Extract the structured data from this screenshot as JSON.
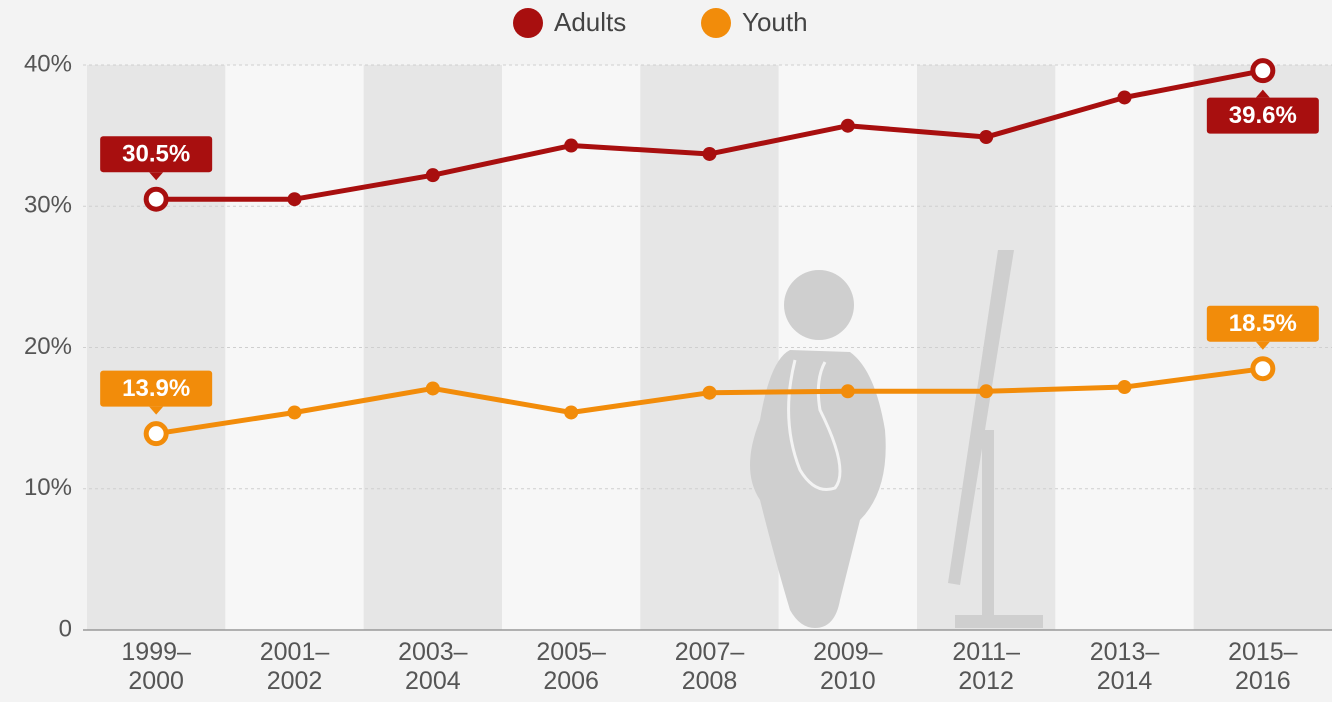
{
  "chart_data": {
    "type": "line",
    "categories": [
      "1999–2000",
      "2001–2002",
      "2003–2004",
      "2005–2006",
      "2007–2008",
      "2009–2010",
      "2011–2012",
      "2013–2014",
      "2015–2016"
    ],
    "series": [
      {
        "name": "Adults",
        "color": "#a80f0f",
        "values": [
          30.5,
          30.5,
          32.2,
          34.3,
          33.7,
          35.7,
          34.9,
          37.7,
          39.6
        ],
        "value_labels": [
          "30.5%",
          null,
          null,
          null,
          null,
          null,
          null,
          null,
          "39.6%"
        ]
      },
      {
        "name": "Youth",
        "color": "#f28c0a",
        "values": [
          13.9,
          15.4,
          17.1,
          15.4,
          16.8,
          16.9,
          16.9,
          17.2,
          18.5
        ],
        "value_labels": [
          "13.9%",
          null,
          null,
          null,
          null,
          null,
          null,
          null,
          "18.5%"
        ]
      }
    ],
    "ylim": [
      0,
      40
    ],
    "yticks": [
      0,
      {
        "value": 10,
        "label": "10%"
      },
      {
        "value": 20,
        "label": "20%"
      },
      {
        "value": 30,
        "label": "30%"
      },
      {
        "value": 40,
        "label": "40%"
      }
    ],
    "grid": true
  }
}
